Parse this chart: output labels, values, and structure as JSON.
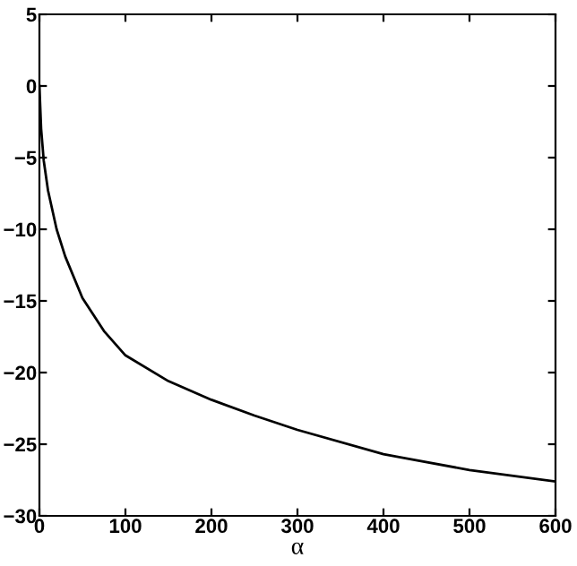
{
  "chart_data": {
    "type": "line",
    "xlabel": "α",
    "x": [
      0,
      2,
      5,
      10,
      20,
      30,
      50,
      75,
      100,
      150,
      200,
      250,
      300,
      400,
      500,
      600
    ],
    "series": [
      {
        "color": "#000000",
        "values": [
          0,
          -3,
          -5.2,
          -7.3,
          -10,
          -11.9,
          -14.8,
          -17.1,
          -18.8,
          -20.6,
          -21.9,
          -23,
          -24,
          -25.7,
          -26.8,
          -27.6
        ]
      }
    ],
    "xlim": [
      0,
      600
    ],
    "ylim": [
      -30,
      5
    ],
    "xticks": [
      0,
      100,
      200,
      300,
      400,
      500,
      600
    ],
    "yticks": [
      -30,
      -25,
      -20,
      -15,
      -10,
      -5,
      0,
      5
    ],
    "grid": false,
    "line_style": "solid",
    "marker": "none"
  }
}
